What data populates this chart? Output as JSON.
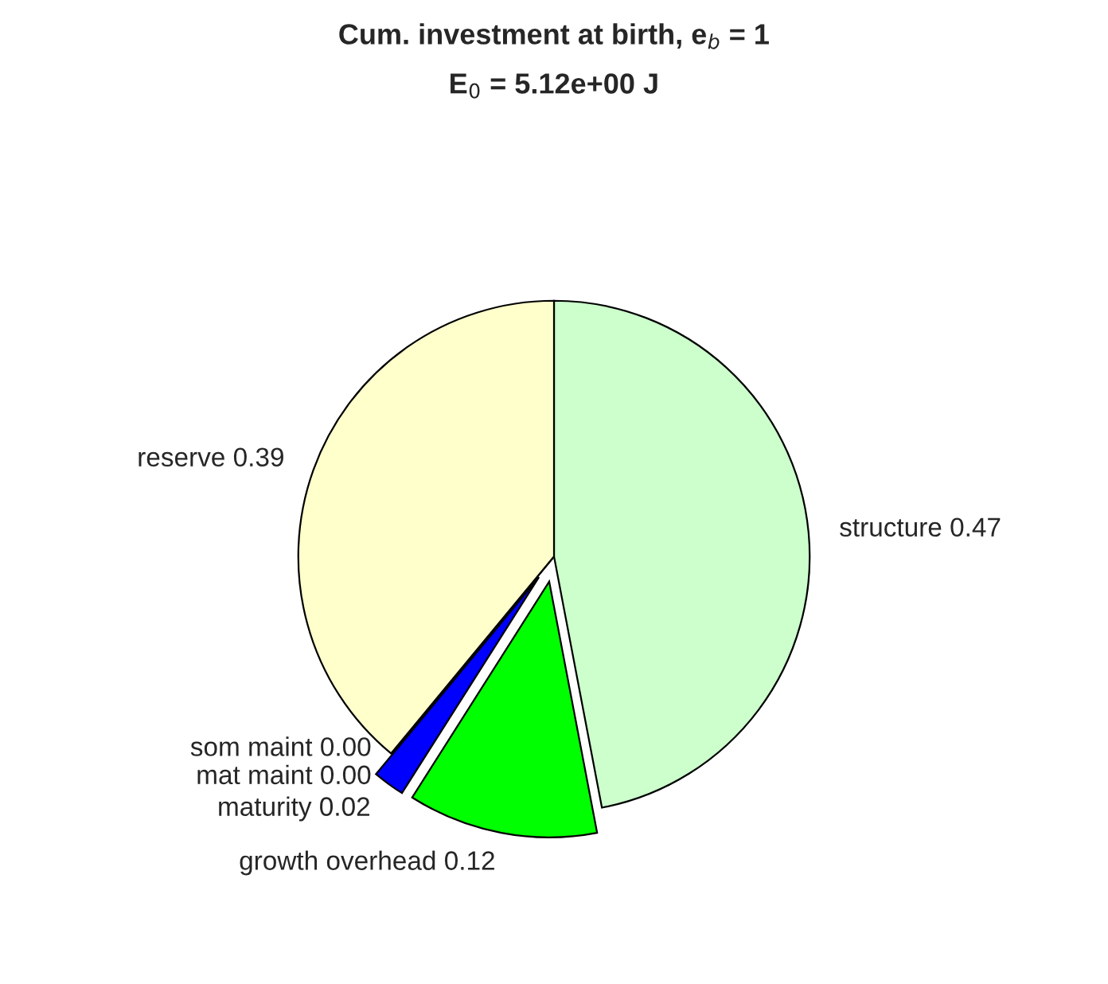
{
  "chart_data": {
    "type": "pie",
    "title": "Cum. investment at birth, e$_{b}$ = 1",
    "subtitle": "E$_{0}$ = 5.12e+00 J",
    "categories": [
      "structure 0.47",
      "growth overhead 0.12",
      "maturity 0.02",
      "mat maint 0.00",
      "som maint 0.00",
      "reserve 0.39"
    ],
    "values": [
      0.47,
      0.12,
      0.02,
      0.0,
      0.0,
      0.39
    ],
    "colors": [
      "#ccffcc",
      "#00ff00",
      "#0000ff",
      "#ff0000",
      "#800000",
      "#ffffcc"
    ]
  }
}
